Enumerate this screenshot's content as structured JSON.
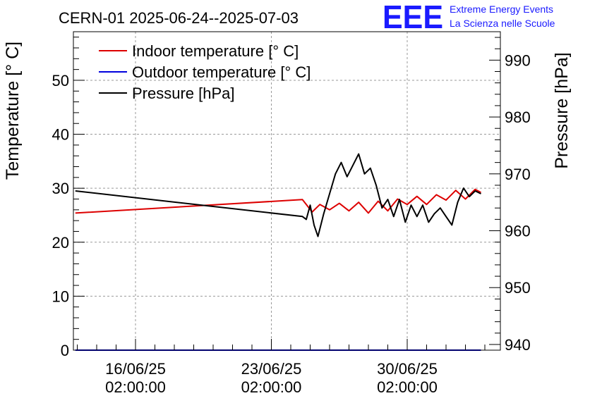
{
  "title": "CERN-01 2025-06-24--2025-07-03",
  "logo": {
    "mark": "EEE",
    "line1": "Extreme Energy Events",
    "line2": "La Scienza nelle Scuole",
    "color": "#1a1aff"
  },
  "chart_data": {
    "type": "line",
    "title": "CERN-01 2025-06-24--2025-07-03",
    "xlabel": "",
    "ylabel": "Temperature [° C]",
    "y2label": "Pressure [hPa]",
    "x_unit": "days since 2025-06-16 02:00:00",
    "xlim": [
      -3.2,
      18.8
    ],
    "ylim": [
      0,
      59
    ],
    "y2lim": [
      939,
      995
    ],
    "grid": true,
    "legend_position": "top-left",
    "x_ticks": [
      {
        "value": 0,
        "label_date": "16/06/25",
        "label_time": "02:00:00"
      },
      {
        "value": 7,
        "label_date": "23/06/25",
        "label_time": "02:00:00"
      },
      {
        "value": 14,
        "label_date": "30/06/25",
        "label_time": "02:00:00"
      }
    ],
    "y_ticks": [
      0,
      10,
      20,
      30,
      40,
      50
    ],
    "y2_ticks": [
      940,
      950,
      960,
      970,
      980,
      990
    ],
    "series": [
      {
        "name": "Indoor temperature [° C]",
        "axis": "left",
        "color": "#dd0000",
        "x": [
          -3.1,
          8.6,
          8.8,
          9.1,
          9.5,
          10.0,
          10.5,
          11.0,
          11.5,
          12.0,
          12.5,
          13.0,
          13.5,
          14.0,
          14.5,
          15.0,
          15.5,
          16.0,
          16.5,
          17.0,
          17.5,
          17.8
        ],
        "values": [
          25.4,
          27.9,
          27.0,
          25.6,
          27.0,
          26.0,
          27.2,
          25.8,
          27.4,
          25.4,
          27.6,
          25.8,
          28.0,
          27.0,
          28.5,
          27.0,
          28.8,
          27.8,
          29.6,
          28.0,
          29.8,
          29.2
        ]
      },
      {
        "name": "Outdoor temperature [° C]",
        "axis": "left",
        "color": "#0000dd",
        "x": [
          -3.1,
          17.8
        ],
        "values": [
          0,
          0
        ]
      },
      {
        "name": "Pressure [hPa]",
        "axis": "right",
        "color": "#000000",
        "x": [
          -3.1,
          8.6,
          8.8,
          9.0,
          9.2,
          9.4,
          9.7,
          10.0,
          10.3,
          10.6,
          10.9,
          11.2,
          11.5,
          11.8,
          12.1,
          12.4,
          12.7,
          13.0,
          13.3,
          13.6,
          13.9,
          14.2,
          14.5,
          14.8,
          15.1,
          15.4,
          15.7,
          16.0,
          16.3,
          16.6,
          16.9,
          17.2,
          17.5,
          17.8
        ],
        "values": [
          967.0,
          962.5,
          962.0,
          964.5,
          961.0,
          959.0,
          963.0,
          966.5,
          970.0,
          972.0,
          969.5,
          971.5,
          973.5,
          970.0,
          971.0,
          968.0,
          964.0,
          965.5,
          962.5,
          965.5,
          961.5,
          964.5,
          962.5,
          964.5,
          961.5,
          963.0,
          964.0,
          962.5,
          961.0,
          965.0,
          967.5,
          966.0,
          967.0,
          966.5
        ]
      }
    ]
  }
}
